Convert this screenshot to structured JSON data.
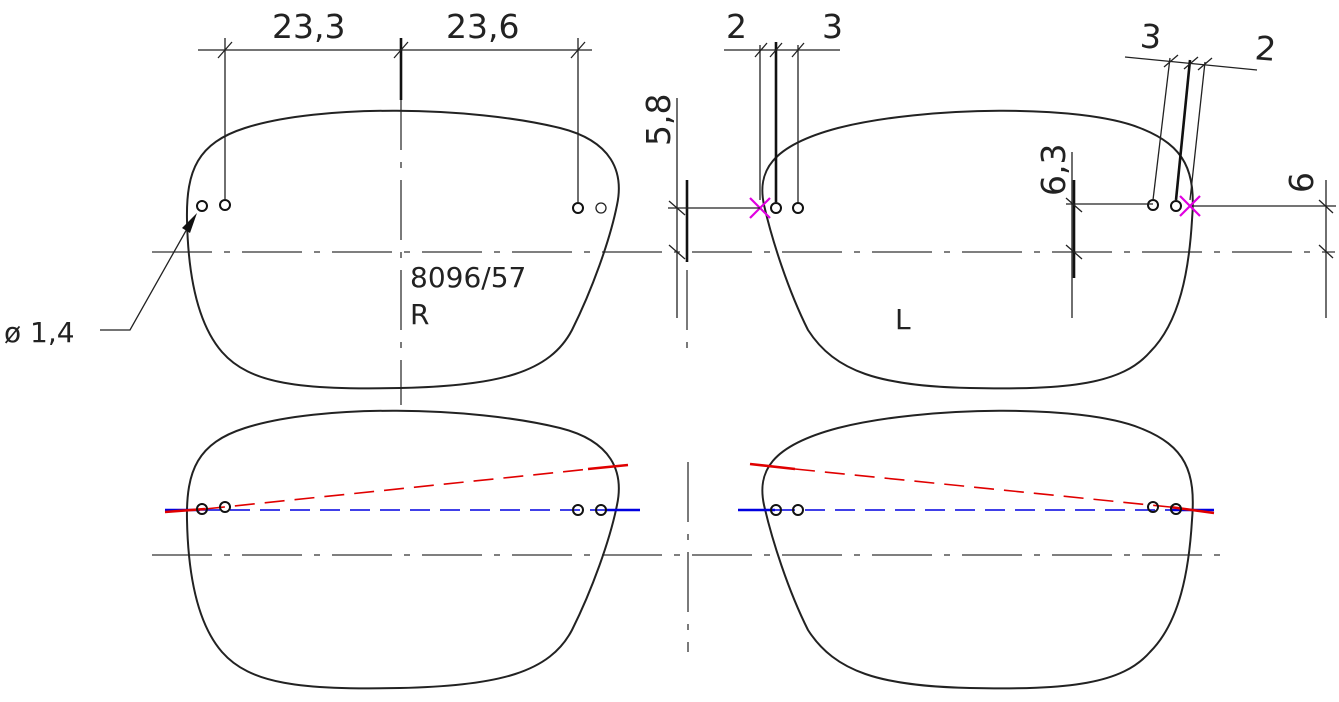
{
  "drawing": {
    "model_code": "8096/57",
    "side_right": "R",
    "side_left": "L",
    "hole_diameter": "ø 1,4"
  },
  "dimensions": {
    "right_nasal": "23,3",
    "right_temporal": "23,6",
    "left_nasal_a": "2",
    "left_nasal_b": "3",
    "left_nasal_height": "5,8",
    "left_temporal_a": "3",
    "left_temporal_b": "2",
    "left_temporal_height": "6,3",
    "left_edge_height": "6"
  },
  "colors": {
    "outline": "#333333",
    "reference_mark": "#e000e0",
    "tilted_axis": "#e00000",
    "level_axis": "#0000e0"
  }
}
